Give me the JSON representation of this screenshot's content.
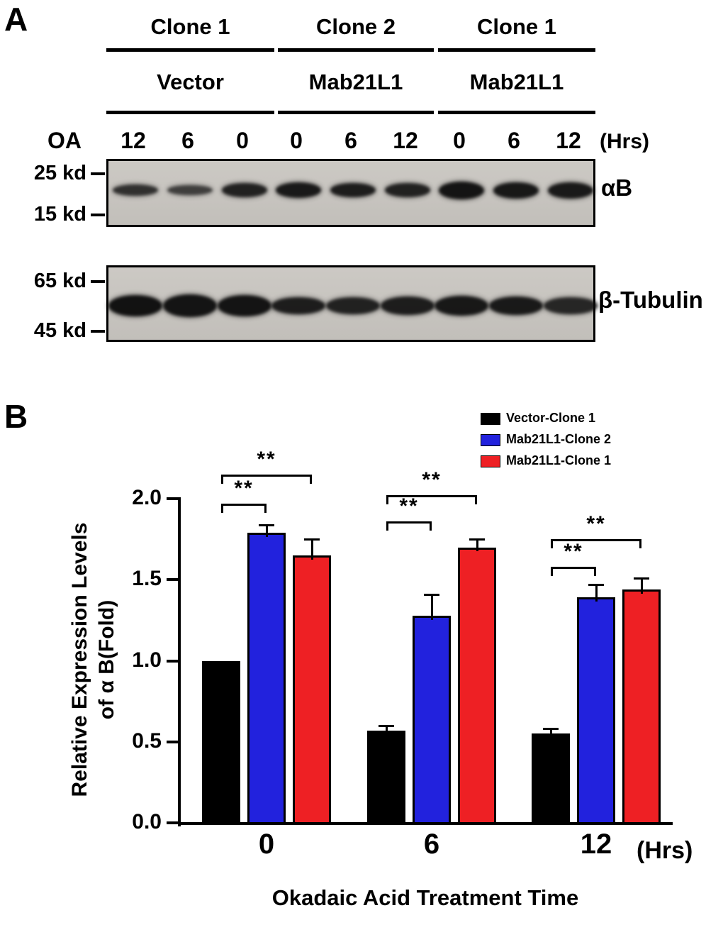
{
  "panelA": {
    "label": "A",
    "group_headers": [
      "Clone 1",
      "Clone 2",
      "Clone 1"
    ],
    "construct_headers": [
      "Vector",
      "Mab21L1",
      "Mab21L1"
    ],
    "oa_label": "OA",
    "lane_times": [
      "12",
      "6",
      "0",
      "0",
      "6",
      "12",
      "0",
      "6",
      "12"
    ],
    "hrs_label": "(Hrs)",
    "blot_alphaB": {
      "markers": [
        "25 kd",
        "15 kd"
      ],
      "label": "αB",
      "band_intensities": [
        0.8,
        0.72,
        0.88,
        0.92,
        0.9,
        0.88,
        0.95,
        0.93,
        0.92
      ],
      "band_heights": [
        16,
        14,
        20,
        22,
        20,
        20,
        25,
        23,
        23
      ]
    },
    "blot_tubulin": {
      "markers": [
        "65 kd",
        "45 kd"
      ],
      "label": "β-Tubulin",
      "band_intensities": [
        0.96,
        0.95,
        0.95,
        0.9,
        0.88,
        0.9,
        0.93,
        0.92,
        0.85
      ],
      "band_heights": [
        30,
        32,
        30,
        24,
        24,
        26,
        28,
        26,
        24
      ]
    }
  },
  "panelB": {
    "label": "B",
    "ylabel_line1": "Relative Expression Levels",
    "ylabel_line2": "of α B(Fold)",
    "hrs_label": "(Hrs)"
  },
  "chart_data": {
    "type": "bar",
    "title": "",
    "categories": [
      "0",
      "6",
      "12"
    ],
    "series": [
      {
        "name": "Vector-Clone 1",
        "color": "#000000",
        "values": [
          1.0,
          0.57,
          0.55
        ],
        "errors": [
          0,
          0.03,
          0.03
        ]
      },
      {
        "name": "Mab21L1-Clone 2",
        "color": "#2222dd",
        "values": [
          1.79,
          1.28,
          1.39
        ],
        "errors": [
          0.05,
          0.13,
          0.08
        ]
      },
      {
        "name": "Mab21L1-Clone 1",
        "color": "#ee2024",
        "values": [
          1.65,
          1.7,
          1.44
        ],
        "errors": [
          0.1,
          0.05,
          0.07
        ]
      }
    ],
    "ylabel": "Relative Expression Levels of α B(Fold)",
    "xlabel": "Okadaic Acid Treatment Time",
    "x_unit": "(Hrs)",
    "ylim": [
      0,
      2.0
    ],
    "yticks": [
      0.0,
      0.5,
      1.0,
      1.5,
      2.0
    ],
    "grid": false,
    "legend_position": "top-right",
    "significance": [
      {
        "group": 0,
        "brackets": [
          {
            "from": 0,
            "to": 1,
            "y": 1.97,
            "label": "**"
          },
          {
            "from": 0,
            "to": 2,
            "y": 2.15,
            "label": "**"
          }
        ]
      },
      {
        "group": 1,
        "brackets": [
          {
            "from": 0,
            "to": 1,
            "y": 1.86,
            "label": "**"
          },
          {
            "from": 0,
            "to": 2,
            "y": 2.02,
            "label": "**"
          }
        ]
      },
      {
        "group": 2,
        "brackets": [
          {
            "from": 0,
            "to": 1,
            "y": 1.58,
            "label": "**"
          },
          {
            "from": 0,
            "to": 2,
            "y": 1.75,
            "label": "**"
          }
        ]
      }
    ]
  }
}
